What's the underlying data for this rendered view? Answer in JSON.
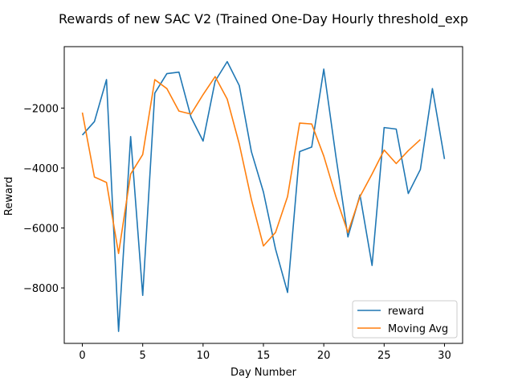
{
  "chart_data": {
    "type": "line",
    "title": "Rewards of new SAC V2 (Trained One-Day Hourly threshold_exp",
    "xlabel": "Day Number",
    "ylabel": "Reward",
    "xlim": [
      -1.5,
      31.5
    ],
    "ylim": [
      -9850,
      50
    ],
    "xticks": [
      0,
      5,
      10,
      15,
      20,
      25,
      30
    ],
    "xtick_labels": [
      "0",
      "5",
      "10",
      "15",
      "20",
      "25",
      "30"
    ],
    "yticks": [
      -8000,
      -6000,
      -4000,
      -2000
    ],
    "ytick_labels": [
      "−8000",
      "−6000",
      "−4000",
      "−2000"
    ],
    "grid": false,
    "legend_position": "lower-right",
    "series": [
      {
        "name": "reward",
        "color": "#1f77b4",
        "x": [
          0,
          1,
          2,
          3,
          4,
          5,
          6,
          7,
          8,
          9,
          10,
          11,
          12,
          13,
          14,
          15,
          16,
          17,
          18,
          19,
          20,
          21,
          22,
          23,
          24,
          25,
          26,
          27,
          28,
          29,
          30
        ],
        "y": [
          -2900,
          -2450,
          -1050,
          -9450,
          -2950,
          -8250,
          -1500,
          -850,
          -800,
          -2300,
          -3100,
          -1100,
          -450,
          -1250,
          -3450,
          -4800,
          -6700,
          -8150,
          -3450,
          -3300,
          -700,
          -3600,
          -6300,
          -4900,
          -7250,
          -2650,
          -2700,
          -4850,
          -4050,
          -1350,
          -3700
        ]
      },
      {
        "name": "Moving Avg",
        "color": "#ff7f0e",
        "x": [
          0,
          1,
          2,
          3,
          4,
          5,
          6,
          7,
          8,
          9,
          10,
          11,
          12,
          13,
          14,
          15,
          16,
          17,
          18,
          19,
          20,
          21,
          22,
          23,
          24,
          25,
          26,
          27,
          28
        ],
        "y": [
          -2150,
          -4300,
          -4480,
          -6850,
          -4200,
          -3550,
          -1050,
          -1350,
          -2100,
          -2200,
          -1550,
          -950,
          -1700,
          -3200,
          -5050,
          -6600,
          -6150,
          -4950,
          -2500,
          -2530,
          -3600,
          -4950,
          -6150,
          -4950,
          -4200,
          -3400,
          -3850,
          -3420,
          -3050
        ]
      }
    ]
  }
}
